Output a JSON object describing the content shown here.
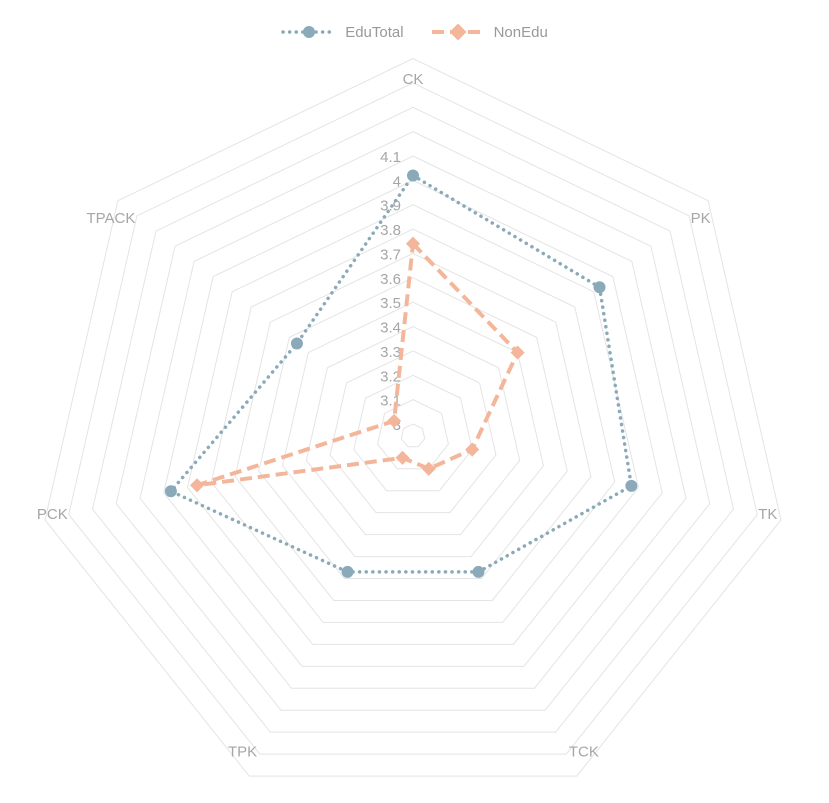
{
  "chart_data": {
    "type": "radar",
    "axes": [
      "CK",
      "PK",
      "TK",
      "TCK",
      "TPK",
      "PCK",
      "TPACK"
    ],
    "radial_range": [
      3.0,
      4.1
    ],
    "radial_ticks": [
      "3",
      "3.1",
      "3.2",
      "3.3",
      "3.4",
      "3.5",
      "3.6",
      "3.7",
      "3.8",
      "3.9",
      "4",
      "4.1"
    ],
    "radial_tick_values": [
      3.0,
      3.1,
      3.2,
      3.3,
      3.4,
      3.5,
      3.6,
      3.7,
      3.8,
      3.9,
      4.0,
      4.1
    ],
    "grid": true,
    "legend_position": "top-center",
    "series": [
      {
        "name": "EduTotal",
        "values": [
          4.02,
          3.93,
          3.87,
          3.57,
          3.57,
          3.97,
          3.56
        ],
        "color": "#8AAAB9",
        "line_style": "dotted",
        "marker": "circle"
      },
      {
        "name": "NonEdu",
        "values": [
          3.74,
          3.5,
          3.2,
          3.1,
          3.05,
          3.86,
          3.05
        ],
        "color": "#F4B69A",
        "line_style": "dashed",
        "marker": "diamond"
      }
    ]
  }
}
